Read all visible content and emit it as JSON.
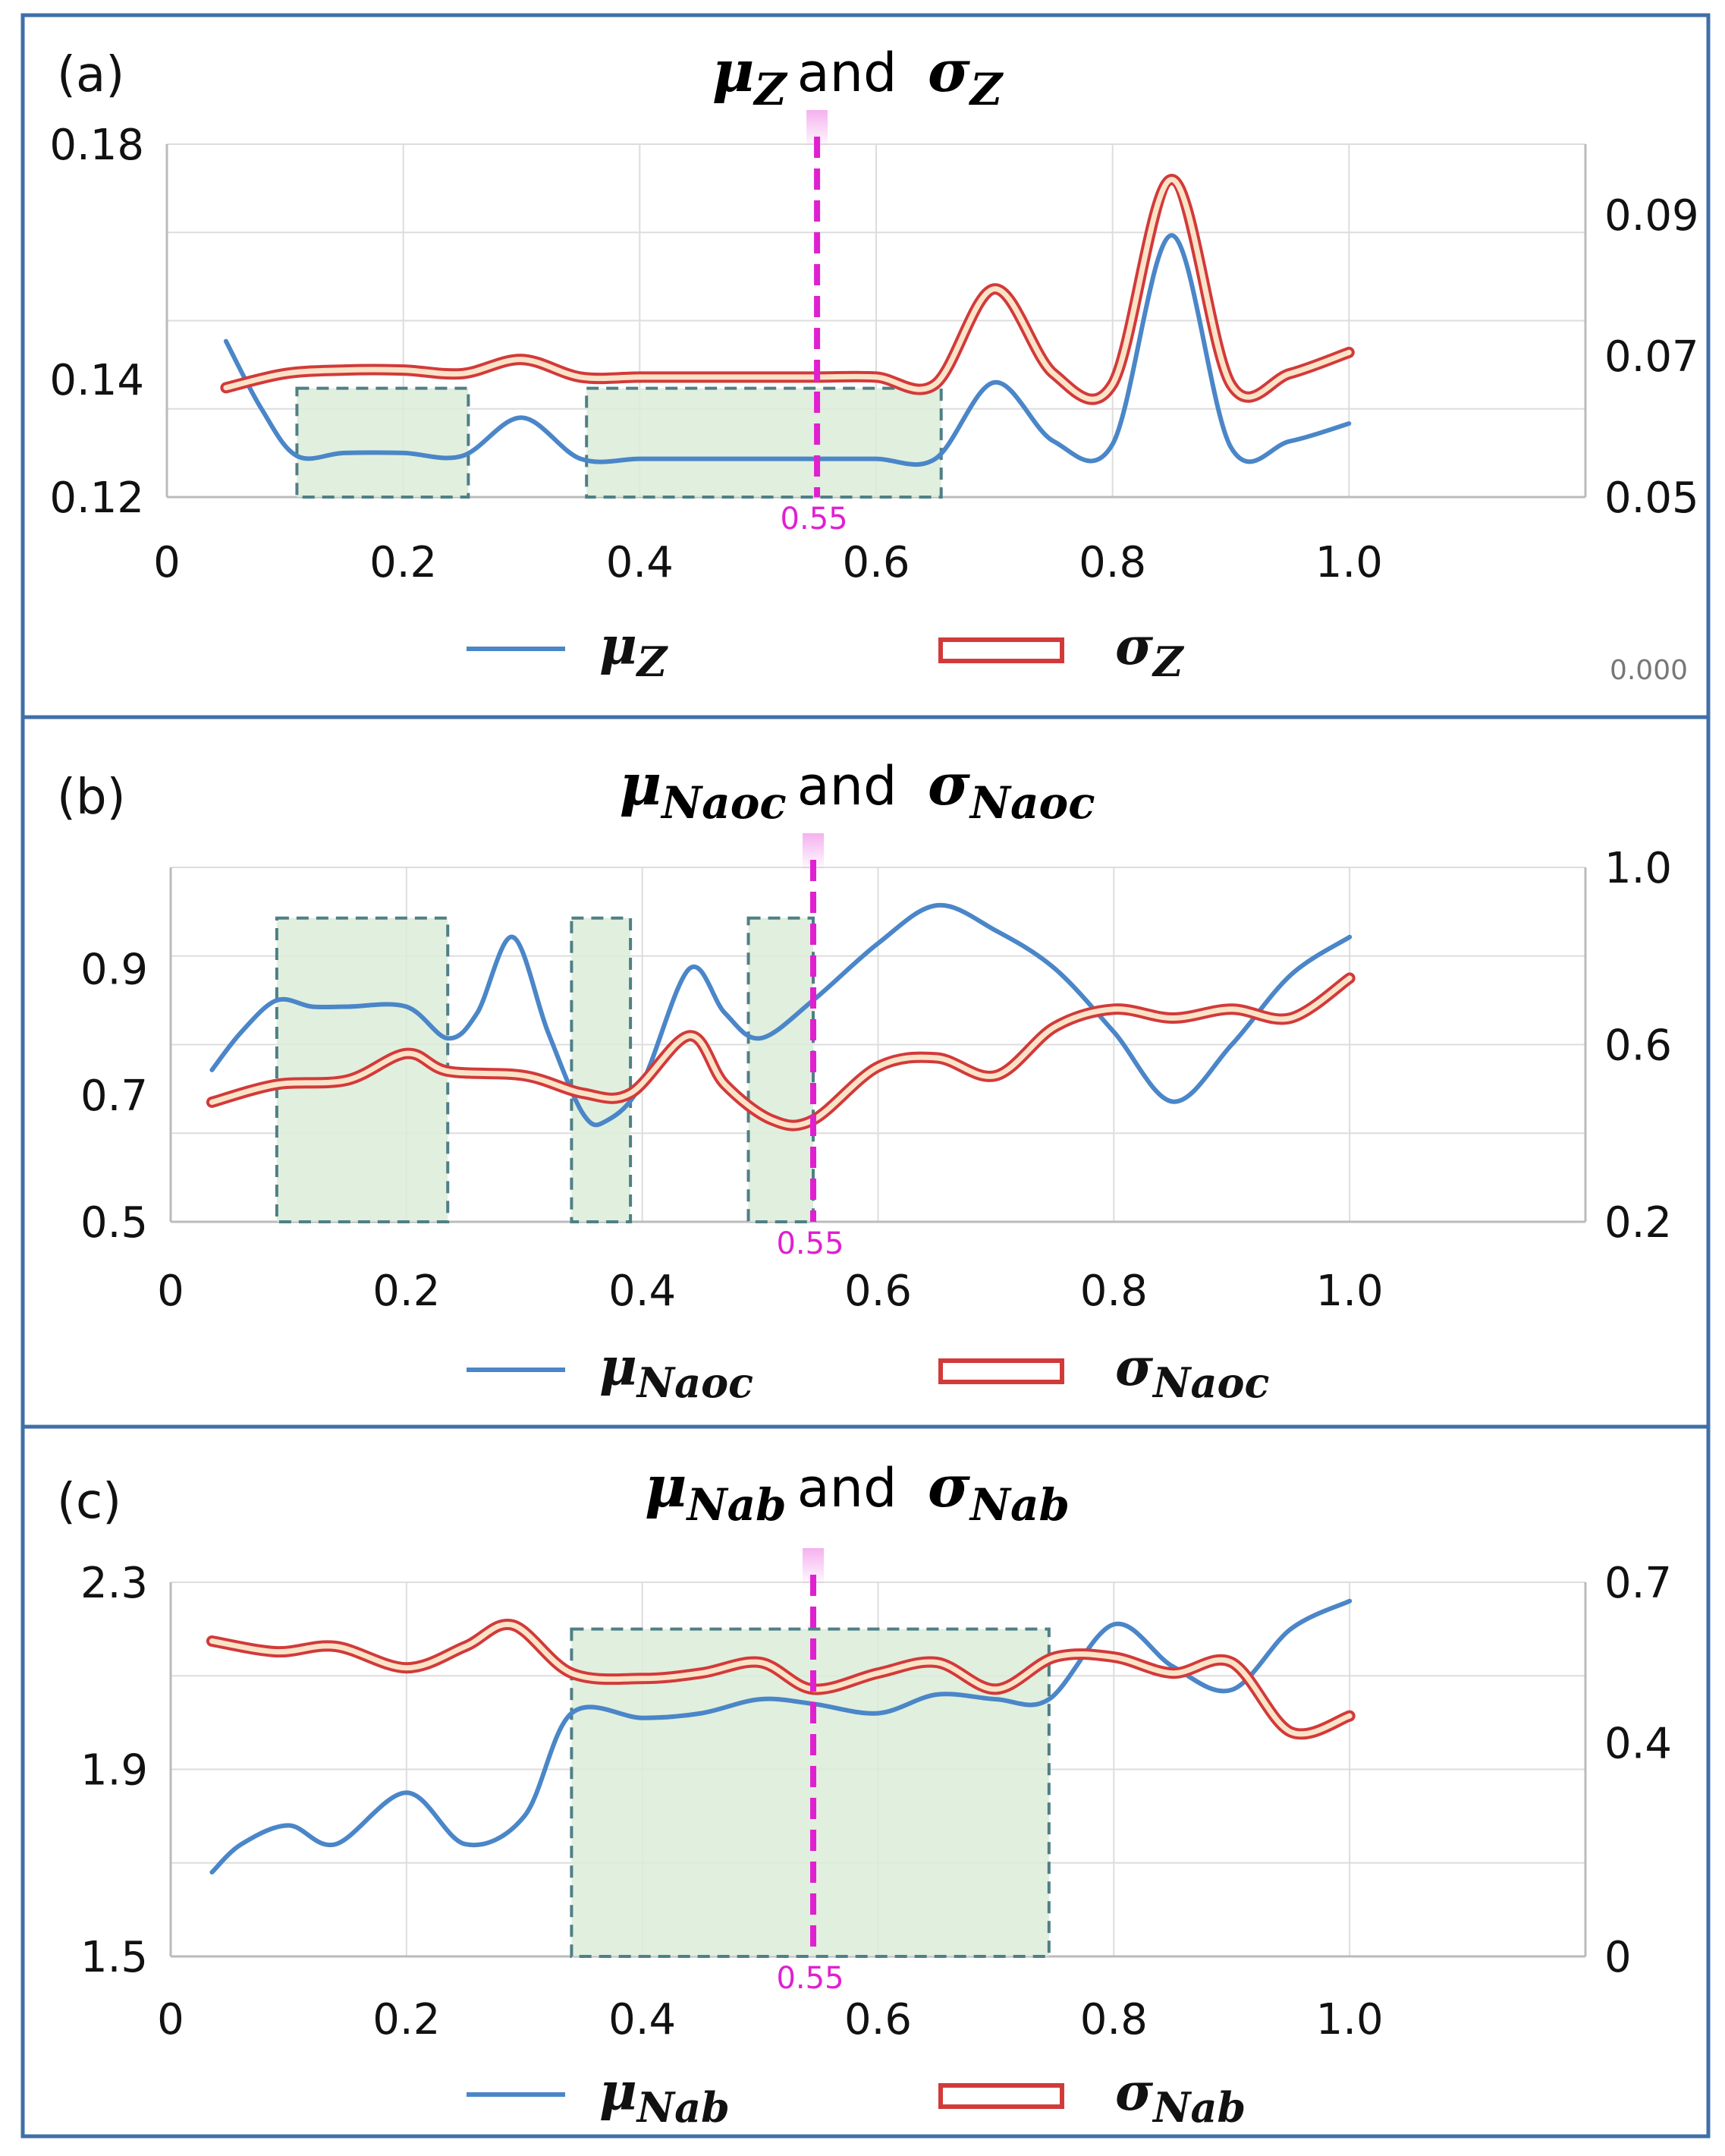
{
  "colors": {
    "mu": "#4a86c8",
    "sigma_outer": "#d23a3a",
    "sigma_inner": "#fbe3c8",
    "highlight": "#dcecd8",
    "highlight_border": "#4f7f86",
    "marker": "#e020d0",
    "grid": "#dddddd",
    "frame": "#3f6fa8"
  },
  "chart_data": [
    {
      "panel": "(a)",
      "type": "line",
      "title": {
        "mu": "μZ",
        "and": "and",
        "sigma": "σZ"
      },
      "title_parts": {
        "mu_base": "μ",
        "mu_sub": "Z",
        "sigma_base": "σ",
        "sigma_sub": "Z"
      },
      "legend": {
        "mu_base": "μ",
        "mu_sub": "Z",
        "sigma_base": "σ",
        "sigma_sub": "Z"
      },
      "xlim": [
        0,
        1.2
      ],
      "x_ticks": [
        0,
        0.2,
        0.4,
        0.6,
        0.8,
        1.0
      ],
      "x_tick_labels": [
        "0",
        "0.2",
        "0.4",
        "0.6",
        "0.8",
        "1.0"
      ],
      "ylim_left": [
        0.12,
        0.18
      ],
      "y_ticks_left": [
        0.12,
        0.14,
        0.18
      ],
      "y_tick_labels_left": [
        "0.12",
        "0.14",
        "0.18"
      ],
      "ylim_right": [
        0.05,
        0.1
      ],
      "y_ticks_right": [
        0.05,
        0.07,
        0.09
      ],
      "y_tick_labels_right": [
        "0.05",
        "0.07",
        "0.09"
      ],
      "marker": {
        "x": 0.55,
        "label": "0.55"
      },
      "corner_label": "0.000",
      "highlights": [
        {
          "x0": 0.11,
          "x1": 0.255,
          "ytop": 0.1385
        },
        {
          "x0": 0.355,
          "x1": 0.655,
          "ytop": 0.1385
        }
      ],
      "series": [
        {
          "name": "mu",
          "axis": "left",
          "x": [
            0.05,
            0.08,
            0.11,
            0.15,
            0.2,
            0.25,
            0.3,
            0.35,
            0.4,
            0.45,
            0.5,
            0.55,
            0.6,
            0.65,
            0.7,
            0.75,
            0.8,
            0.85,
            0.9,
            0.95,
            1.0
          ],
          "y": [
            0.1465,
            0.135,
            0.127,
            0.1275,
            0.1275,
            0.127,
            0.1335,
            0.1265,
            0.1265,
            0.1265,
            0.1265,
            0.1265,
            0.1265,
            0.1265,
            0.1395,
            0.1295,
            0.129,
            0.1645,
            0.1285,
            0.1295,
            0.1325
          ]
        },
        {
          "name": "sigma",
          "axis": "right",
          "x": [
            0.05,
            0.1,
            0.15,
            0.2,
            0.25,
            0.3,
            0.35,
            0.4,
            0.45,
            0.5,
            0.55,
            0.6,
            0.65,
            0.7,
            0.75,
            0.8,
            0.85,
            0.9,
            0.95,
            1.0
          ],
          "y": [
            0.0655,
            0.0675,
            0.068,
            0.068,
            0.0675,
            0.0695,
            0.067,
            0.067,
            0.067,
            0.067,
            0.067,
            0.067,
            0.066,
            0.0795,
            0.0675,
            0.066,
            0.095,
            0.066,
            0.0675,
            0.0705
          ]
        }
      ]
    },
    {
      "panel": "(b)",
      "type": "line",
      "title": {
        "mu": "μNaoc",
        "and": "and",
        "sigma": "σNaoc"
      },
      "title_parts": {
        "mu_base": "μ",
        "mu_sub": "Naoc",
        "sigma_base": "σ",
        "sigma_sub": "Naoc"
      },
      "legend": {
        "mu_base": "μ",
        "mu_sub": "Naoc",
        "sigma_base": "σ",
        "sigma_sub": "Naoc"
      },
      "xlim": [
        0,
        1.2
      ],
      "x_ticks": [
        0,
        0.2,
        0.4,
        0.6,
        0.8,
        1.0
      ],
      "x_tick_labels": [
        "0",
        "0.2",
        "0.4",
        "0.6",
        "0.8",
        "1.0"
      ],
      "ylim_left": [
        0.5,
        1.06
      ],
      "y_ticks_left": [
        0.5,
        0.7,
        0.9
      ],
      "y_tick_labels_left": [
        "0.5",
        "0.7",
        "0.9"
      ],
      "ylim_right": [
        0.2,
        1.0
      ],
      "y_ticks_right": [
        0.2,
        0.6,
        1.0
      ],
      "y_tick_labels_right": [
        "0.2",
        "0.6",
        "1.0"
      ],
      "marker": {
        "x": 0.545,
        "label": "0.55"
      },
      "corner_label": "",
      "highlights": [
        {
          "x0": 0.09,
          "x1": 0.235,
          "ytop": 0.98
        },
        {
          "x0": 0.34,
          "x1": 0.39,
          "ytop": 0.98
        },
        {
          "x0": 0.49,
          "x1": 0.545,
          "ytop": 0.98
        }
      ],
      "series": [
        {
          "name": "mu",
          "axis": "left",
          "x": [
            0.035,
            0.06,
            0.09,
            0.12,
            0.15,
            0.2,
            0.235,
            0.26,
            0.29,
            0.32,
            0.35,
            0.37,
            0.4,
            0.44,
            0.47,
            0.5,
            0.545,
            0.6,
            0.65,
            0.7,
            0.75,
            0.8,
            0.85,
            0.9,
            0.95,
            1.0
          ],
          "y": [
            0.74,
            0.8,
            0.85,
            0.84,
            0.84,
            0.84,
            0.79,
            0.83,
            0.95,
            0.8,
            0.67,
            0.66,
            0.72,
            0.9,
            0.83,
            0.79,
            0.85,
            0.94,
            1.0,
            0.96,
            0.9,
            0.8,
            0.69,
            0.78,
            0.89,
            0.95
          ]
        },
        {
          "name": "sigma",
          "axis": "right",
          "x": [
            0.035,
            0.09,
            0.15,
            0.2,
            0.235,
            0.3,
            0.35,
            0.39,
            0.44,
            0.47,
            0.51,
            0.545,
            0.6,
            0.65,
            0.7,
            0.75,
            0.8,
            0.85,
            0.9,
            0.95,
            1.0
          ],
          "y": [
            0.47,
            0.51,
            0.52,
            0.58,
            0.54,
            0.53,
            0.49,
            0.49,
            0.62,
            0.51,
            0.43,
            0.43,
            0.55,
            0.57,
            0.53,
            0.64,
            0.68,
            0.66,
            0.68,
            0.66,
            0.75
          ]
        }
      ]
    },
    {
      "panel": "(c)",
      "type": "line",
      "title": {
        "mu": "μNab",
        "and": "and",
        "sigma": "σNab"
      },
      "title_parts": {
        "mu_base": "μ",
        "mu_sub": "Nab",
        "sigma_base": "σ",
        "sigma_sub": "Nab"
      },
      "legend": {
        "mu_base": "μ",
        "mu_sub": "Nab",
        "sigma_base": "σ",
        "sigma_sub": "Nab"
      },
      "xlim": [
        0,
        1.2
      ],
      "x_ticks": [
        0,
        0.2,
        0.4,
        0.6,
        0.8,
        1.0
      ],
      "x_tick_labels": [
        "0",
        "0.2",
        "0.4",
        "0.6",
        "0.8",
        "1.0"
      ],
      "ylim_left": [
        1.5,
        2.3
      ],
      "y_ticks_left": [
        1.5,
        1.9,
        2.3
      ],
      "y_tick_labels_left": [
        "1.5",
        "1.9",
        "2.3"
      ],
      "ylim_right": [
        0,
        0.7
      ],
      "y_ticks_right": [
        0,
        0.4,
        0.7
      ],
      "y_tick_labels_right": [
        "0",
        "0.4",
        "0.7"
      ],
      "marker": {
        "x": 0.545,
        "label": "0.55"
      },
      "corner_label": "",
      "highlights": [
        {
          "x0": 0.34,
          "x1": 0.745,
          "ytop": 2.2
        }
      ],
      "series": [
        {
          "name": "mu",
          "axis": "left",
          "x": [
            0.035,
            0.06,
            0.1,
            0.14,
            0.2,
            0.25,
            0.3,
            0.34,
            0.4,
            0.45,
            0.5,
            0.545,
            0.6,
            0.65,
            0.7,
            0.745,
            0.8,
            0.85,
            0.9,
            0.95,
            1.0
          ],
          "y": [
            1.68,
            1.74,
            1.78,
            1.74,
            1.85,
            1.74,
            1.8,
            2.02,
            2.01,
            2.02,
            2.05,
            2.04,
            2.02,
            2.06,
            2.05,
            2.05,
            2.21,
            2.12,
            2.07,
            2.2,
            2.26
          ]
        },
        {
          "name": "sigma",
          "axis": "right",
          "x": [
            0.035,
            0.09,
            0.14,
            0.2,
            0.25,
            0.29,
            0.34,
            0.4,
            0.45,
            0.5,
            0.545,
            0.6,
            0.65,
            0.7,
            0.75,
            0.8,
            0.85,
            0.9,
            0.95,
            1.0
          ],
          "y": [
            0.59,
            0.57,
            0.58,
            0.54,
            0.58,
            0.62,
            0.53,
            0.52,
            0.53,
            0.55,
            0.5,
            0.53,
            0.55,
            0.5,
            0.56,
            0.56,
            0.53,
            0.55,
            0.42,
            0.45
          ]
        }
      ]
    }
  ]
}
